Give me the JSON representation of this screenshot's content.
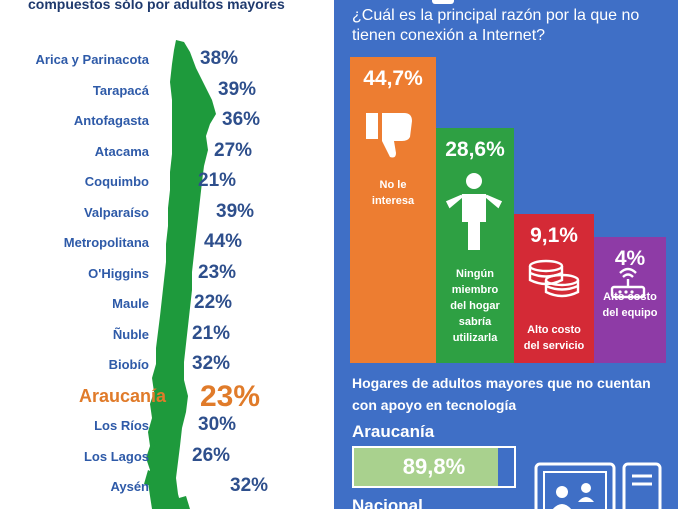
{
  "left": {
    "header": "compuestos sólo por adultos mayores",
    "highlight_color": "#e07b2a",
    "regions": [
      {
        "name": "Arica y Parinacota",
        "pct": "38%"
      },
      {
        "name": "Tarapacá",
        "pct": "39%"
      },
      {
        "name": "Antofagasta",
        "pct": "36%"
      },
      {
        "name": "Atacama",
        "pct": "27%"
      },
      {
        "name": "Coquimbo",
        "pct": "21%"
      },
      {
        "name": "Valparaíso",
        "pct": "39%"
      },
      {
        "name": "Metropolitana",
        "pct": "44%"
      },
      {
        "name": "O'Higgins",
        "pct": "23%"
      },
      {
        "name": "Maule",
        "pct": "22%"
      },
      {
        "name": "Ñuble",
        "pct": "21%"
      },
      {
        "name": "Biobío",
        "pct": "32%"
      },
      {
        "name": "Araucanía",
        "pct": "23%",
        "highlight": true
      },
      {
        "name": "Los Ríos",
        "pct": "30%"
      },
      {
        "name": "Los Lagos",
        "pct": "26%"
      },
      {
        "name": "Aysén",
        "pct": "32%"
      }
    ]
  },
  "right": {
    "question": "¿Cuál es la principal razón por la que no tienen conexión a Internet?",
    "reasons": [
      {
        "value": 44.7,
        "pct_text": "44,7%",
        "label": [
          "No le",
          "interesa"
        ],
        "color": "#ed7d31",
        "icon": "thumbs-down-icon"
      },
      {
        "value": 28.6,
        "pct_text": "28,6%",
        "label": [
          "Ningún",
          "miembro",
          "del hogar",
          "sabría",
          "utilizarla"
        ],
        "color": "#2ea043",
        "icon": "confused-person-icon"
      },
      {
        "value": 9.1,
        "pct_text": "9,1%",
        "label": [
          "Alto costo",
          "del servicio"
        ],
        "color": "#d42a36",
        "icon": "coins-icon"
      },
      {
        "value": 4,
        "pct_text": "4%",
        "label": [
          "Alto costo",
          "del equipo"
        ],
        "color": "#8e3ba6",
        "icon": "router-icon"
      }
    ],
    "support_title": "Hogares de adultos mayores que no cuentan con apoyo en tecnología",
    "araucania_label": "Araucanía",
    "araucania_value": 89.8,
    "araucania_value_text": "89,8%",
    "nacional_label": "Nacional"
  }
}
